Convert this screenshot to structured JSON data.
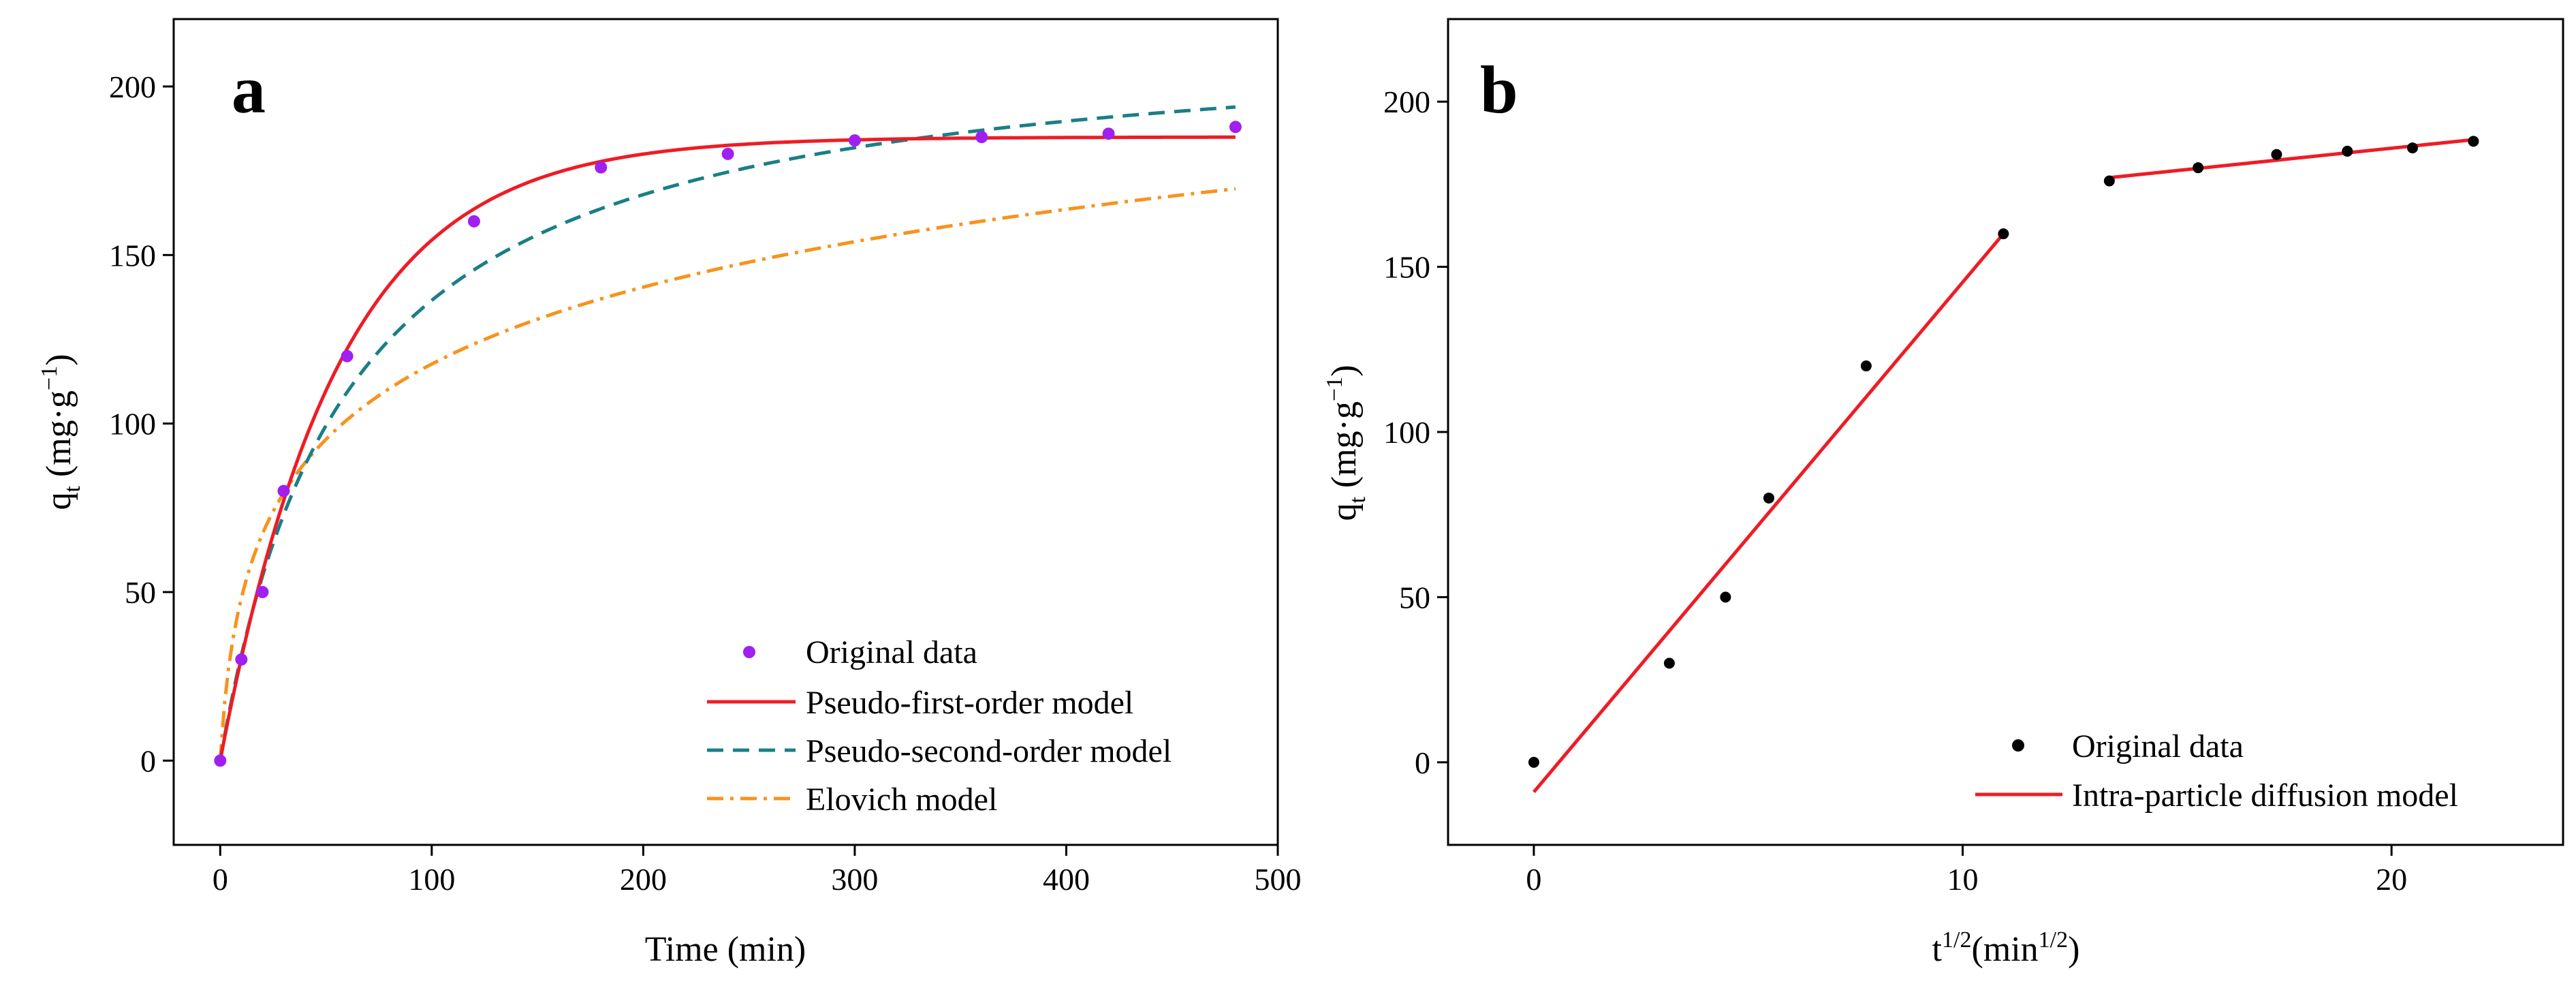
{
  "chart_data": [
    {
      "type": "scatter",
      "panel_label": "a",
      "xlabel": "Time (min)",
      "ylabel": {
        "main": "q",
        "sub": "t",
        "unit_prefix": " (mg·g",
        "unit_sup": "−1",
        "unit_suffix": ")"
      },
      "xlim": [
        -22,
        500
      ],
      "ylim": [
        -25,
        220
      ],
      "xticks": [
        0,
        100,
        200,
        300,
        400,
        500
      ],
      "yticks": [
        0,
        50,
        100,
        150,
        200
      ],
      "legend_position": "bottom-right",
      "colors": {
        "original": "#a020f0",
        "pfo": "#ee1c25",
        "pso": "#1a7f86",
        "elovich": "#f7931e"
      },
      "series": [
        {
          "name": "Original data",
          "kind": "points",
          "x": [
            0,
            10,
            20,
            30,
            60,
            120,
            180,
            240,
            300,
            360,
            420,
            480
          ],
          "y": [
            0,
            30,
            50,
            80,
            120,
            160,
            176,
            180,
            184,
            185,
            186,
            188
          ]
        },
        {
          "name": "Pseudo-first-order model",
          "kind": "curve",
          "model": "pfo",
          "params": {
            "qe": 185,
            "k1": 0.018
          }
        },
        {
          "name": "Pseudo-second-order model",
          "kind": "curve",
          "model": "pso",
          "params": {
            "qe": 218,
            "k2": 7.69e-05
          }
        },
        {
          "name": "Elovich model",
          "kind": "curve",
          "model": "elovich",
          "params": {
            "a": 0.3,
            "b": 9.33,
            "c": 52.8
          }
        }
      ]
    },
    {
      "type": "scatter",
      "panel_label": "b",
      "xlabel": {
        "main": "t",
        "sup": "1/2",
        "unit_prefix": "(min",
        "unit_sup": "1/2",
        "unit_suffix": ")"
      },
      "ylabel": {
        "main": "q",
        "sub": "t",
        "unit_prefix": " (mg·g",
        "unit_sup": "−1",
        "unit_suffix": ")"
      },
      "xlim": [
        -2,
        24
      ],
      "ylim": [
        -25,
        225
      ],
      "xticks": [
        0,
        10,
        20
      ],
      "yticks": [
        0,
        50,
        100,
        150,
        200
      ],
      "legend_position": "bottom-right",
      "colors": {
        "original": "#000000",
        "fit": "#ee1c25"
      },
      "series": [
        {
          "name": "Original data",
          "kind": "points",
          "x": [
            0,
            3.16,
            4.47,
            5.48,
            7.75,
            10.95,
            13.42,
            15.49,
            17.32,
            18.97,
            20.49,
            21.91
          ],
          "y": [
            0,
            30,
            50,
            80,
            120,
            160,
            176,
            180,
            184,
            185,
            186,
            188
          ]
        },
        {
          "name": "Intra-particle diffusion model",
          "kind": "segments",
          "segments": [
            {
              "x": [
                0,
                10.95
              ],
              "y": [
                -9,
                160
              ]
            },
            {
              "x": [
                13.42,
                21.91
              ],
              "y": [
                177,
                188.5
              ]
            }
          ]
        }
      ]
    }
  ]
}
